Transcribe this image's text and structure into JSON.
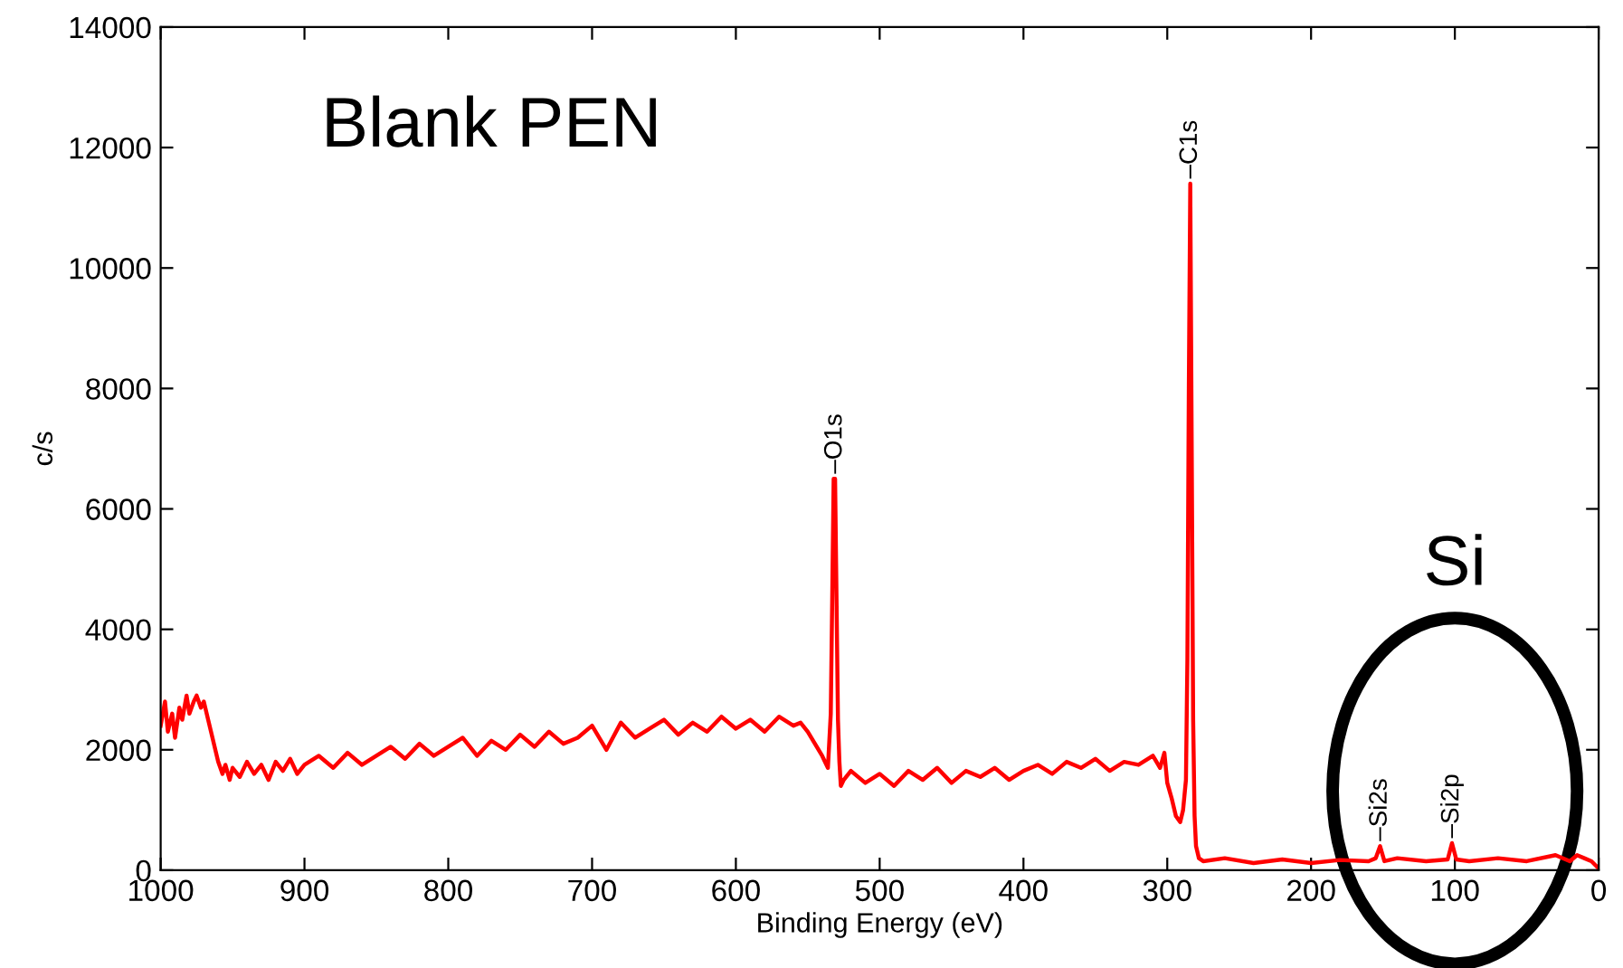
{
  "chart_data": {
    "type": "line",
    "xlabel": "Binding Energy (eV)",
    "ylabel": "c/s",
    "xlim": [
      1000,
      0
    ],
    "xticks": [
      0,
      100,
      200,
      300,
      400,
      500,
      600,
      700,
      800,
      900,
      1000
    ],
    "ylim": [
      0,
      14000
    ],
    "yticks": [
      0,
      2000,
      4000,
      6000,
      8000,
      10000,
      12000,
      14000
    ],
    "grid": false,
    "marker": "none",
    "line_style": "solid",
    "annotations": [
      "Blank PEN",
      "Si",
      {
        "text": "–O1s",
        "x": 531,
        "y": 6500
      },
      {
        "text": "–C1s",
        "x": 284,
        "y": 11400
      },
      {
        "text": "–Si2s",
        "x": 152,
        "y": 400
      },
      {
        "text": "–Si2p",
        "x": 102,
        "y": 450
      }
    ],
    "series": [
      {
        "color": "#ff0000",
        "x": [
          1000,
          997,
          995,
          992,
          990,
          987,
          985,
          982,
          980,
          977,
          975,
          972,
          970,
          967,
          965,
          962,
          960,
          957,
          955,
          952,
          950,
          945,
          940,
          935,
          930,
          925,
          920,
          915,
          910,
          905,
          900,
          890,
          880,
          870,
          860,
          850,
          840,
          830,
          820,
          810,
          800,
          790,
          780,
          770,
          760,
          750,
          740,
          730,
          720,
          710,
          700,
          690,
          680,
          670,
          660,
          650,
          640,
          630,
          620,
          610,
          600,
          590,
          580,
          570,
          560,
          555,
          550,
          545,
          540,
          536,
          534,
          533,
          532,
          531,
          530,
          529,
          528,
          527,
          525,
          520,
          510,
          500,
          490,
          480,
          470,
          460,
          450,
          440,
          430,
          420,
          410,
          400,
          390,
          380,
          370,
          360,
          350,
          340,
          330,
          320,
          310,
          305,
          302,
          300,
          297,
          294,
          291,
          289,
          287,
          286,
          285,
          284,
          283,
          282,
          281,
          280,
          278,
          275,
          260,
          240,
          220,
          200,
          180,
          160,
          155,
          152,
          149,
          140,
          120,
          105,
          102,
          99,
          90,
          70,
          50,
          30,
          20,
          15,
          10,
          5,
          0
        ],
        "values": [
          2400,
          2800,
          2300,
          2600,
          2200,
          2700,
          2500,
          2900,
          2600,
          2800,
          2900,
          2700,
          2800,
          2500,
          2300,
          2000,
          1800,
          1600,
          1750,
          1500,
          1700,
          1550,
          1800,
          1600,
          1750,
          1500,
          1800,
          1650,
          1850,
          1600,
          1750,
          1900,
          1700,
          1950,
          1750,
          1900,
          2050,
          1850,
          2100,
          1900,
          2050,
          2200,
          1900,
          2150,
          2000,
          2250,
          2050,
          2300,
          2100,
          2200,
          2400,
          2000,
          2450,
          2200,
          2350,
          2500,
          2250,
          2450,
          2300,
          2550,
          2350,
          2500,
          2300,
          2550,
          2400,
          2450,
          2300,
          2100,
          1900,
          1700,
          2600,
          4500,
          6500,
          6500,
          4500,
          2500,
          1800,
          1400,
          1500,
          1650,
          1450,
          1600,
          1400,
          1650,
          1500,
          1700,
          1450,
          1650,
          1550,
          1700,
          1500,
          1650,
          1750,
          1600,
          1800,
          1700,
          1850,
          1650,
          1800,
          1750,
          1900,
          1700,
          1950,
          1450,
          1200,
          900,
          800,
          1000,
          1500,
          3500,
          8000,
          11400,
          7000,
          2500,
          900,
          400,
          200,
          150,
          200,
          120,
          180,
          120,
          170,
          150,
          200,
          400,
          150,
          200,
          150,
          180,
          450,
          180,
          150,
          200,
          150,
          250,
          150,
          250,
          200,
          150,
          30
        ]
      }
    ]
  }
}
